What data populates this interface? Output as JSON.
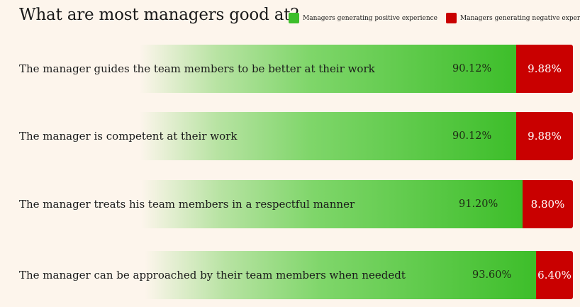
{
  "title": "What are most managers good at?",
  "legend": {
    "positive": {
      "label": "Managers generating positive experience",
      "color": "#3dbe2a"
    },
    "negative": {
      "label": "Managers generating negative experience",
      "color": "#c90000"
    }
  },
  "chart_data": {
    "type": "bar",
    "orientation": "horizontal-stacked",
    "title": "What are most managers good at?",
    "categories": [
      "The manager guides the team members to be better at their work",
      "The manager is competent at their work",
      "The manager treats his team members in a respectful manner",
      "The manager can be approached by their team members when needed t"
    ],
    "series": [
      {
        "name": "Managers generating positive experience",
        "values": [
          90.12,
          90.12,
          91.2,
          93.6
        ],
        "labels": [
          "90.12%",
          "90.12%",
          "91.20%",
          "93.60%"
        ]
      },
      {
        "name": "Managers generating negative experience",
        "values": [
          9.88,
          9.88,
          8.8,
          6.4
        ],
        "labels": [
          "9.88%",
          "9.88%",
          "8.80%",
          "6.40%"
        ]
      }
    ],
    "xlim": [
      0,
      100
    ],
    "legend_position": "top-right",
    "grid": false
  }
}
